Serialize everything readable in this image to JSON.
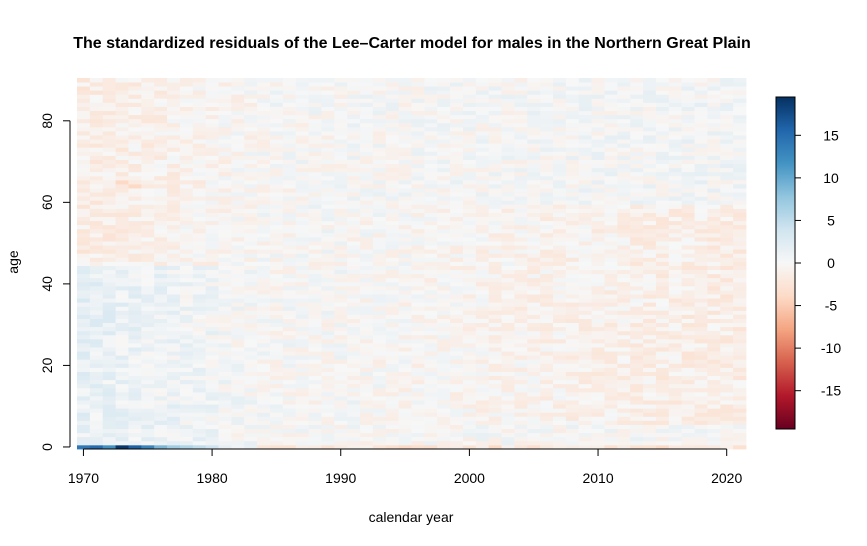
{
  "chart_data": {
    "type": "heatmap",
    "title": "The standardized residuals of the Lee–Carter model for males in the Northern Great Plain",
    "xlabel": "calendar year",
    "ylabel": "age",
    "x_range": [
      1970,
      2021
    ],
    "y_range": [
      0,
      90
    ],
    "xlim": [
      1969.5,
      2021.5
    ],
    "ylim": [
      -0.5,
      90.5
    ],
    "x_ticks": [
      "1970",
      "1980",
      "1990",
      "2000",
      "2010",
      "2020"
    ],
    "y_ticks": [
      "0",
      "20",
      "40",
      "60",
      "80"
    ],
    "grid": false,
    "colorbar": {
      "placement": "right",
      "range": [
        -19.5,
        19.5
      ],
      "ticks": [
        "15",
        "10",
        "5",
        "0",
        "-5",
        "-10",
        "-15"
      ],
      "colors": [
        "#67001f",
        "#b2182b",
        "#d6604d",
        "#f4a582",
        "#fddbc7",
        "#f7f7f7",
        "#d1e5f0",
        "#92c5de",
        "#4393c3",
        "#2166ac",
        "#053061"
      ]
    },
    "notable_cells": [
      {
        "x": 1970,
        "y": 0,
        "value": 14
      },
      {
        "x": 1971,
        "y": 0,
        "value": 15
      },
      {
        "x": 1972,
        "y": 0,
        "value": 12
      },
      {
        "x": 1973,
        "y": 0,
        "value": 19
      },
      {
        "x": 1974,
        "y": 0,
        "value": 16
      },
      {
        "x": 1975,
        "y": 0,
        "value": 13
      },
      {
        "x": 1976,
        "y": 0,
        "value": 9
      },
      {
        "x": 1977,
        "y": 0,
        "value": 7
      },
      {
        "x": 1978,
        "y": 0,
        "value": 6
      },
      {
        "x": 1979,
        "y": 0,
        "value": 5
      },
      {
        "x": 1980,
        "y": 0,
        "value": 4
      },
      {
        "x": 1973,
        "y": 65,
        "value": -4
      },
      {
        "x": 1974,
        "y": 64,
        "value": -4
      },
      {
        "x": 1995,
        "y": 0,
        "value": -4
      },
      {
        "x": 2002,
        "y": 0,
        "value": -4
      },
      {
        "x": 2015,
        "y": 0,
        "value": -4
      }
    ]
  }
}
